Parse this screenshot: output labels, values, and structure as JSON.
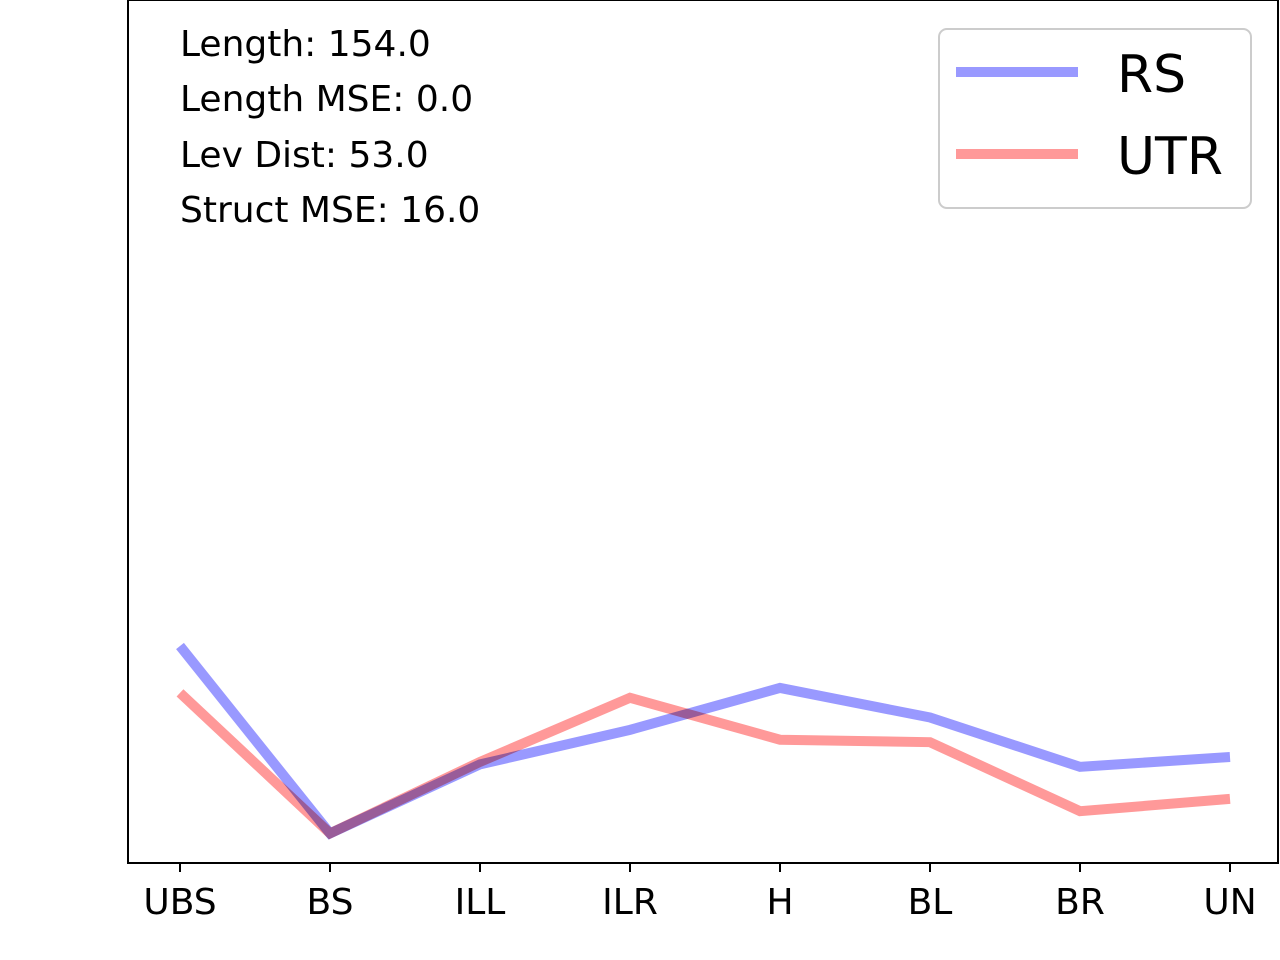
{
  "annotations": [
    "Length: 154.0",
    "Length MSE: 0.0",
    "Lev Dist: 53.0",
    "Struct MSE: 16.0"
  ],
  "chart_data": {
    "type": "line",
    "title": "",
    "xlabel": "",
    "ylabel": "",
    "categories": [
      "UBS",
      "BS",
      "ILL",
      "ILR",
      "H",
      "BL",
      "BR",
      "UN"
    ],
    "ylim": [
      0,
      35
    ],
    "y_ticks_shown": false,
    "grid": false,
    "legend_position": "top-right",
    "series": [
      {
        "name": "RS",
        "color": "#9999ff",
        "values": [
          8.8,
          1.2,
          4.0,
          5.4,
          7.1,
          5.9,
          3.9,
          4.3
        ]
      },
      {
        "name": "UTR",
        "color": "#ff9999",
        "values": [
          6.9,
          1.2,
          4.1,
          6.7,
          5.0,
          4.9,
          2.1,
          2.6
        ]
      }
    ]
  }
}
